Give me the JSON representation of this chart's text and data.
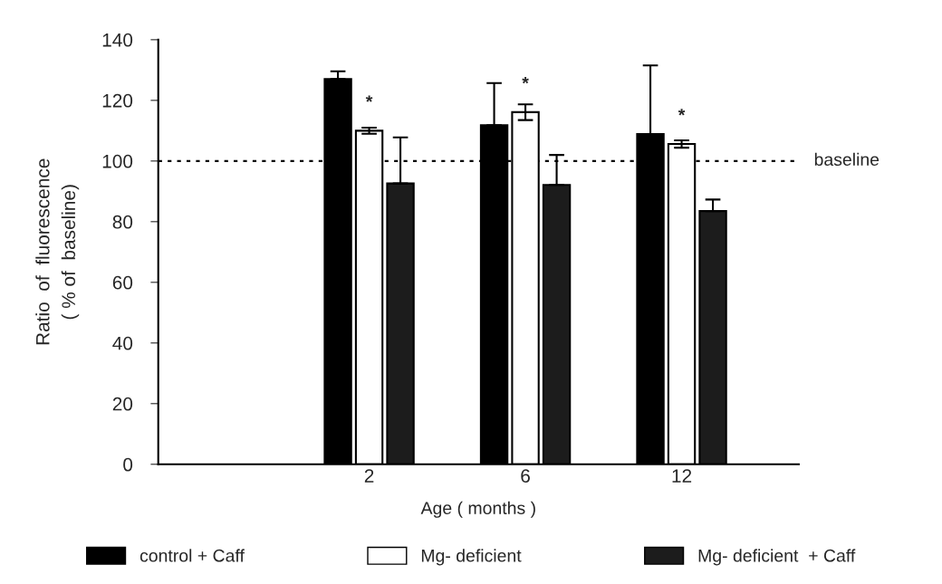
{
  "chart_data": {
    "type": "bar",
    "xlabel": "Age ( months )",
    "ylabel": "Ratio  of  fluorescence\n( % of  baseline)",
    "categories": [
      "2",
      "6",
      "12"
    ],
    "series": [
      {
        "name": "control + Caff",
        "color": "#000000",
        "values": [
          127,
          111.8,
          108.9
        ],
        "errors": [
          [
            127,
            129.6
          ],
          [
            111.8,
            125.7
          ],
          [
            108.9,
            131.5
          ]
        ]
      },
      {
        "name": "Mg- deficient",
        "color": "#ffffff",
        "values": [
          110,
          116.1,
          105.6
        ],
        "errors": [
          1,
          2.6,
          1.2
        ]
      },
      {
        "name": "Mg- deficient  + Caff",
        "color": "#1c1c1c",
        "values": [
          92.6,
          92.1,
          83.5
        ],
        "errors": [
          [
            92.6,
            107.8
          ],
          [
            92.1,
            102
          ],
          [
            83.5,
            87.3
          ]
        ]
      }
    ],
    "ylim": [
      0,
      140
    ],
    "yticks": [
      0,
      20,
      40,
      60,
      80,
      100,
      120,
      140
    ],
    "ref_lines": [
      {
        "axis": "y",
        "value": 100,
        "label": "baseline",
        "line_style": "dotted"
      }
    ],
    "annotations": [
      {
        "text": "*",
        "x": "2",
        "y": 110
      },
      {
        "text": "*",
        "x": "6",
        "y": 116.1
      },
      {
        "text": "*",
        "x": "12",
        "y": 105.6
      }
    ],
    "legend": "bottom",
    "grid": false
  }
}
